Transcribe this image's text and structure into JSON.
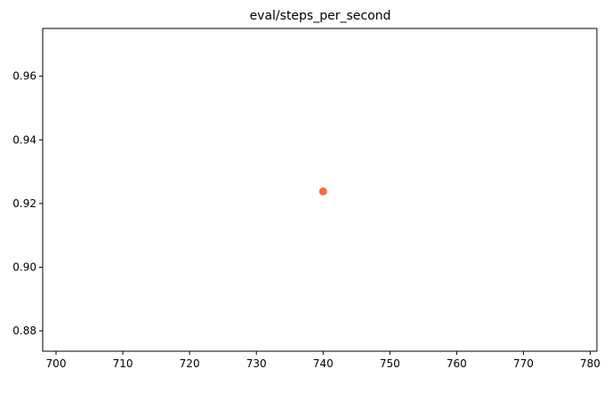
{
  "chart_data": {
    "type": "scatter",
    "title": "eval/steps_per_second",
    "xlabel": "",
    "ylabel": "",
    "xlim": [
      698,
      781
    ],
    "ylim": [
      0.8736,
      0.975
    ],
    "xticks": [
      700,
      710,
      720,
      730,
      740,
      750,
      760,
      770,
      780
    ],
    "yticks": [
      0.88,
      0.9,
      0.92,
      0.94,
      0.96
    ],
    "grid": false,
    "legend": "none",
    "series": [
      {
        "x": [
          740
        ],
        "y": [
          0.9238
        ],
        "color": "#ff6b3d"
      }
    ]
  }
}
